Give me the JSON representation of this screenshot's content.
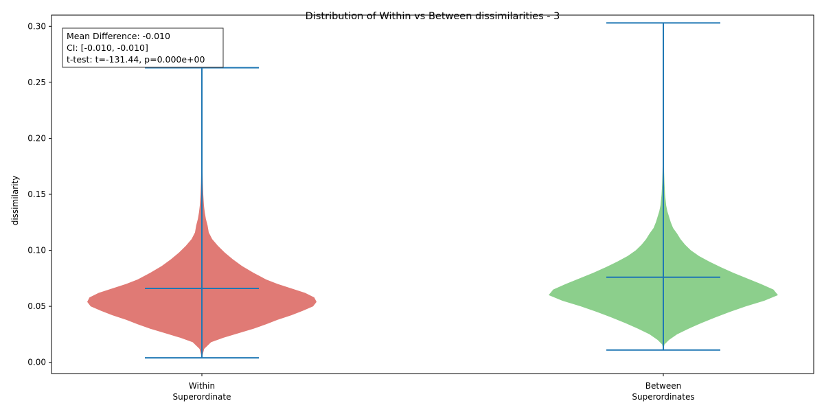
{
  "chart_data": {
    "type": "violin",
    "title": "Distribution of Within vs Between dissimilarities - 3",
    "xlabel": "",
    "ylabel": "dissimilarity",
    "ylim": [
      -0.01,
      0.31
    ],
    "yticks": [
      0.0,
      0.05,
      0.1,
      0.15,
      0.2,
      0.25,
      0.3
    ],
    "ytick_labels": [
      "0.00",
      "0.05",
      "0.10",
      "0.15",
      "0.20",
      "0.25",
      "0.30"
    ],
    "grid": false,
    "line_color": "#1f77b4",
    "categories": [
      {
        "label_lines": [
          "Within",
          "Superordinate"
        ],
        "color": "#e07a75",
        "min": 0.004,
        "max": 0.263,
        "mean": 0.066,
        "density": [
          [
            0.004,
            0
          ],
          [
            0.012,
            0.02
          ],
          [
            0.018,
            0.08
          ],
          [
            0.022,
            0.19
          ],
          [
            0.026,
            0.32
          ],
          [
            0.03,
            0.45
          ],
          [
            0.034,
            0.56
          ],
          [
            0.038,
            0.66
          ],
          [
            0.042,
            0.78
          ],
          [
            0.046,
            0.88
          ],
          [
            0.05,
            0.97
          ],
          [
            0.054,
            1.0
          ],
          [
            0.058,
            0.98
          ],
          [
            0.062,
            0.9
          ],
          [
            0.066,
            0.78
          ],
          [
            0.07,
            0.66
          ],
          [
            0.074,
            0.56
          ],
          [
            0.08,
            0.45
          ],
          [
            0.086,
            0.35
          ],
          [
            0.092,
            0.27
          ],
          [
            0.098,
            0.2
          ],
          [
            0.104,
            0.14
          ],
          [
            0.11,
            0.09
          ],
          [
            0.116,
            0.06
          ],
          [
            0.122,
            0.05
          ],
          [
            0.128,
            0.035
          ],
          [
            0.134,
            0.025
          ],
          [
            0.14,
            0.018
          ],
          [
            0.15,
            0.012
          ],
          [
            0.16,
            0.008
          ],
          [
            0.17,
            0.006
          ],
          [
            0.18,
            0.004
          ],
          [
            0.19,
            0.003
          ],
          [
            0.2,
            0.001
          ],
          [
            0.21,
            0.0003
          ],
          [
            0.263,
            0
          ]
        ]
      },
      {
        "label_lines": [
          "Between",
          "Superordinates"
        ],
        "color": "#8ccf8c",
        "min": 0.011,
        "max": 0.303,
        "mean": 0.076,
        "density": [
          [
            0.011,
            0
          ],
          [
            0.016,
            0.01
          ],
          [
            0.02,
            0.05
          ],
          [
            0.025,
            0.12
          ],
          [
            0.03,
            0.22
          ],
          [
            0.035,
            0.33
          ],
          [
            0.04,
            0.45
          ],
          [
            0.045,
            0.58
          ],
          [
            0.05,
            0.72
          ],
          [
            0.055,
            0.88
          ],
          [
            0.06,
            1.0
          ],
          [
            0.065,
            0.96
          ],
          [
            0.07,
            0.85
          ],
          [
            0.075,
            0.73
          ],
          [
            0.08,
            0.61
          ],
          [
            0.085,
            0.5
          ],
          [
            0.09,
            0.4
          ],
          [
            0.095,
            0.31
          ],
          [
            0.1,
            0.24
          ],
          [
            0.105,
            0.19
          ],
          [
            0.11,
            0.15
          ],
          [
            0.115,
            0.12
          ],
          [
            0.12,
            0.085
          ],
          [
            0.125,
            0.065
          ],
          [
            0.13,
            0.05
          ],
          [
            0.135,
            0.035
          ],
          [
            0.14,
            0.025
          ],
          [
            0.15,
            0.015
          ],
          [
            0.16,
            0.01
          ],
          [
            0.17,
            0.007
          ],
          [
            0.18,
            0.005
          ],
          [
            0.19,
            0.003
          ],
          [
            0.2,
            0.002
          ],
          [
            0.21,
            0.001
          ],
          [
            0.22,
            0.0004
          ],
          [
            0.24,
            0.0001
          ],
          [
            0.303,
            0
          ]
        ]
      }
    ],
    "annotation": {
      "lines": [
        "Mean Difference: -0.010",
        "CI: [-0.010, -0.010]",
        "t-test: t=-131.44, p=0.000e+00"
      ],
      "placement": "top-left"
    }
  }
}
